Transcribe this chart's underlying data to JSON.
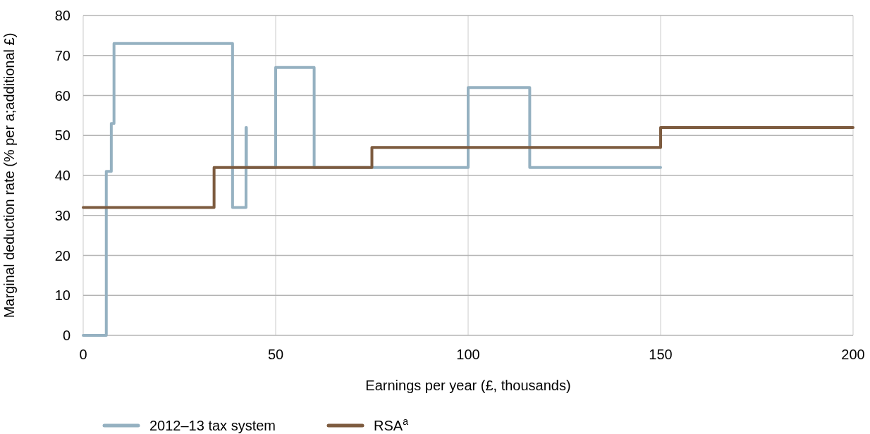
{
  "chart_data": {
    "type": "step",
    "xlabel": "Earnings per year (£, thousands)",
    "ylabel": "Marginal deduction rate (% per a;additional £)",
    "xlim": [
      0,
      200
    ],
    "xticks": [
      0,
      50,
      100,
      150,
      200
    ],
    "ylim": [
      0,
      80
    ],
    "yticks": [
      0,
      10,
      20,
      30,
      40,
      50,
      60,
      70,
      80
    ],
    "grid": true,
    "legend": "bottom",
    "series": [
      {
        "name": "2012–13 tax system",
        "color": "#95b1c1",
        "x": [
          0,
          6,
          7.3,
          8,
          38.8,
          42.3,
          42.4,
          50,
          60,
          100,
          116,
          150
        ],
        "values": [
          0,
          41,
          53,
          73,
          32,
          52,
          42,
          67,
          42,
          62,
          42,
          42
        ]
      },
      {
        "name": "RSA$^{a}$",
        "color": "#7d5b3f",
        "x": [
          0,
          34,
          75,
          150,
          200
        ],
        "values": [
          32,
          42,
          47,
          52,
          52
        ]
      }
    ]
  }
}
